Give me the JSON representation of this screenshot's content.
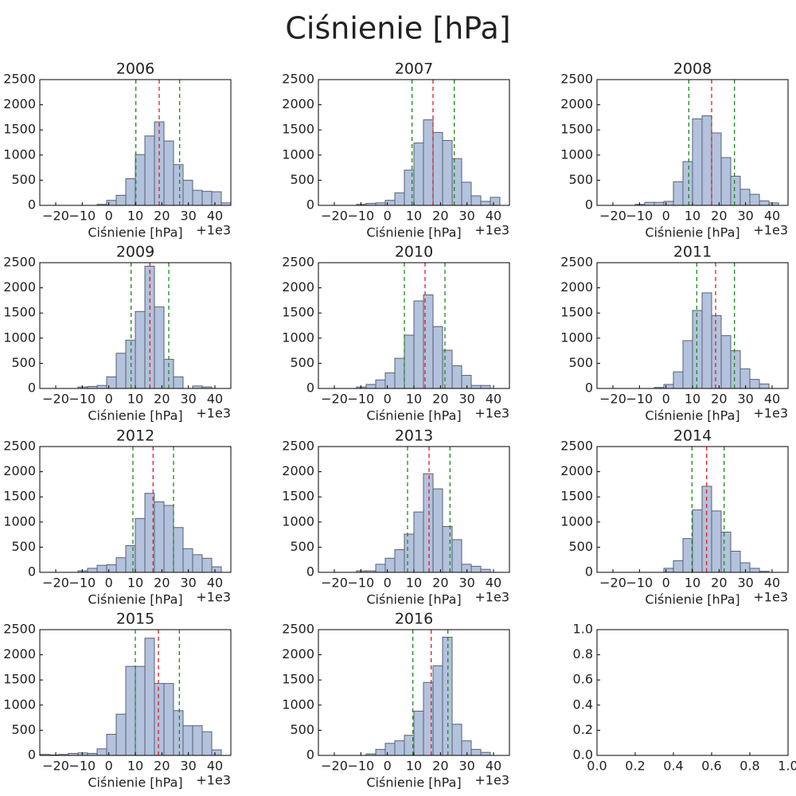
{
  "title": "Ciśnienie [hPa]",
  "chart_data": [
    {
      "type": "histogram",
      "title": "2006",
      "xlabel": "Ciśnienie [hPa]",
      "x_offset_label": "+1e3",
      "color": "#b3c2dd",
      "edgecolor": "#5a6070",
      "bins": [
        -26,
        -22.4,
        -18.8,
        -15.2,
        -11.6,
        -8,
        -4.4,
        -0.8,
        2.8,
        6.4,
        10,
        13.6,
        17.2,
        20.8,
        24.4,
        28,
        31.6,
        35.2,
        38.8,
        42.4,
        46
      ],
      "values": [
        0,
        0,
        0,
        0,
        0,
        0,
        20,
        100,
        200,
        530,
        1010,
        1380,
        1660,
        1280,
        810,
        500,
        300,
        280,
        270,
        50
      ],
      "vlines": [
        {
          "value": 19,
          "color": "#e41a1c"
        },
        {
          "value": 10.2,
          "color": "#1a8a1a"
        },
        {
          "value": 26.7,
          "color": "#1a8a1a"
        }
      ],
      "xlim": [
        -26,
        46
      ],
      "ylim": [
        0,
        2500
      ],
      "xticks": [
        {
          "value": -20,
          "label": "−20"
        },
        {
          "value": -10,
          "label": "−10"
        },
        0,
        10,
        20,
        30,
        40
      ],
      "yticks": [
        0,
        500,
        1000,
        1500,
        2000,
        2500
      ]
    },
    {
      "type": "histogram",
      "title": "2007",
      "xlabel": "Ciśnienie [hPa]",
      "x_offset_label": "+1e3",
      "color": "#b3c2dd",
      "edgecolor": "#5a6070",
      "bins": [
        -26,
        -22.4,
        -18.8,
        -15.2,
        -11.6,
        -8,
        -4.4,
        -0.8,
        2.8,
        6.4,
        10,
        13.6,
        17.2,
        20.8,
        24.4,
        28,
        31.6,
        35.2,
        38.8,
        42.4,
        46
      ],
      "values": [
        0,
        0,
        0,
        0,
        20,
        40,
        50,
        100,
        250,
        700,
        1240,
        1700,
        1450,
        1290,
        930,
        460,
        190,
        80,
        160,
        0
      ],
      "vlines": [
        {
          "value": 17.2,
          "color": "#e41a1c"
        },
        {
          "value": 9.3,
          "color": "#1a8a1a"
        },
        {
          "value": 25.2,
          "color": "#1a8a1a"
        }
      ],
      "xlim": [
        -26,
        46
      ],
      "ylim": [
        0,
        2500
      ],
      "xticks": [
        {
          "value": -20,
          "label": "−20"
        },
        {
          "value": -10,
          "label": "−10"
        },
        0,
        10,
        20,
        30,
        40
      ],
      "yticks": [
        0,
        500,
        1000,
        1500,
        2000,
        2500
      ]
    },
    {
      "type": "histogram",
      "title": "2008",
      "xlabel": "Ciśnienie [hPa]",
      "x_offset_label": "+1e3",
      "color": "#b3c2dd",
      "edgecolor": "#5a6070",
      "bins": [
        -26,
        -22.4,
        -18.8,
        -15.2,
        -11.6,
        -8,
        -4.4,
        -0.8,
        2.8,
        6.4,
        10,
        13.6,
        17.2,
        20.8,
        24.4,
        28,
        31.6,
        35.2,
        38.8,
        42.4,
        46
      ],
      "values": [
        0,
        0,
        0,
        0,
        20,
        60,
        60,
        80,
        470,
        870,
        1720,
        1780,
        1440,
        950,
        580,
        320,
        220,
        90,
        50,
        0
      ],
      "vlines": [
        {
          "value": 17.2,
          "color": "#e41a1c"
        },
        {
          "value": 8.6,
          "color": "#1a8a1a"
        },
        {
          "value": 25.8,
          "color": "#1a8a1a"
        }
      ],
      "xlim": [
        -26,
        46
      ],
      "ylim": [
        0,
        2500
      ],
      "xticks": [
        {
          "value": -20,
          "label": "−20"
        },
        {
          "value": -10,
          "label": "−10"
        },
        0,
        10,
        20,
        30,
        40
      ],
      "yticks": [
        0,
        500,
        1000,
        1500,
        2000,
        2500
      ]
    },
    {
      "type": "histogram",
      "title": "2009",
      "xlabel": "Ciśnienie [hPa]",
      "x_offset_label": "+1e3",
      "color": "#b3c2dd",
      "edgecolor": "#5a6070",
      "bins": [
        -26,
        -22.4,
        -18.8,
        -15.2,
        -11.6,
        -8,
        -4.4,
        -0.8,
        2.8,
        6.4,
        10,
        13.6,
        17.2,
        20.8,
        24.4,
        28,
        31.6,
        35.2,
        38.8,
        42.4,
        46
      ],
      "values": [
        0,
        0,
        0,
        0,
        30,
        40,
        60,
        230,
        700,
        960,
        1530,
        2430,
        1620,
        580,
        230,
        0,
        50,
        30,
        0,
        0
      ],
      "vlines": [
        {
          "value": 15.5,
          "color": "#e41a1c"
        },
        {
          "value": 8.4,
          "color": "#1a8a1a"
        },
        {
          "value": 22.6,
          "color": "#1a8a1a"
        }
      ],
      "xlim": [
        -26,
        46
      ],
      "ylim": [
        0,
        2500
      ],
      "xticks": [
        {
          "value": -20,
          "label": "−20"
        },
        {
          "value": -10,
          "label": "−10"
        },
        0,
        10,
        20,
        30,
        40
      ],
      "yticks": [
        0,
        500,
        1000,
        1500,
        2000,
        2500
      ]
    },
    {
      "type": "histogram",
      "title": "2010",
      "xlabel": "Ciśnienie [hPa]",
      "x_offset_label": "+1e3",
      "color": "#b3c2dd",
      "edgecolor": "#5a6070",
      "bins": [
        -26,
        -22.4,
        -18.8,
        -15.2,
        -11.6,
        -8,
        -4.4,
        -0.8,
        2.8,
        6.4,
        10,
        13.6,
        17.2,
        20.8,
        24.4,
        28,
        31.6,
        35.2,
        38.8,
        42.4,
        46
      ],
      "values": [
        0,
        0,
        0,
        0,
        30,
        80,
        170,
        310,
        600,
        1060,
        1740,
        1860,
        1230,
        760,
        450,
        260,
        60,
        60,
        0,
        0
      ],
      "vlines": [
        {
          "value": 14.2,
          "color": "#e41a1c"
        },
        {
          "value": 6.4,
          "color": "#1a8a1a"
        },
        {
          "value": 21.7,
          "color": "#1a8a1a"
        }
      ],
      "xlim": [
        -26,
        46
      ],
      "ylim": [
        0,
        2500
      ],
      "xticks": [
        {
          "value": -20,
          "label": "−20"
        },
        {
          "value": -10,
          "label": "−10"
        },
        0,
        10,
        20,
        30,
        40
      ],
      "yticks": [
        0,
        500,
        1000,
        1500,
        2000,
        2500
      ]
    },
    {
      "type": "histogram",
      "title": "2011",
      "xlabel": "Ciśnienie [hPa]",
      "x_offset_label": "+1e3",
      "color": "#b3c2dd",
      "edgecolor": "#5a6070",
      "bins": [
        -26,
        -22.4,
        -18.8,
        -15.2,
        -11.6,
        -8,
        -4.4,
        -0.8,
        2.8,
        6.4,
        10,
        13.6,
        17.2,
        20.8,
        24.4,
        28,
        31.6,
        35.2,
        38.8,
        42.4,
        46
      ],
      "values": [
        0,
        0,
        0,
        0,
        0,
        0,
        20,
        80,
        330,
        950,
        1550,
        1900,
        1450,
        1050,
        750,
        390,
        180,
        90,
        0,
        0
      ],
      "vlines": [
        {
          "value": 18.7,
          "color": "#e41a1c"
        },
        {
          "value": 11.6,
          "color": "#1a8a1a"
        },
        {
          "value": 25.8,
          "color": "#1a8a1a"
        }
      ],
      "xlim": [
        -26,
        46
      ],
      "ylim": [
        0,
        2500
      ],
      "xticks": [
        {
          "value": -20,
          "label": "−20"
        },
        {
          "value": -10,
          "label": "−10"
        },
        0,
        10,
        20,
        30,
        40
      ],
      "yticks": [
        0,
        500,
        1000,
        1500,
        2000,
        2500
      ]
    },
    {
      "type": "histogram",
      "title": "2012",
      "xlabel": "Ciśnienie [hPa]",
      "x_offset_label": "+1e3",
      "color": "#b3c2dd",
      "edgecolor": "#5a6070",
      "bins": [
        -26,
        -22.4,
        -18.8,
        -15.2,
        -11.6,
        -8,
        -4.4,
        -0.8,
        2.8,
        6.4,
        10,
        13.6,
        17.2,
        20.8,
        24.4,
        28,
        31.6,
        35.2,
        38.8,
        42.4,
        46
      ],
      "values": [
        0,
        0,
        0,
        0,
        30,
        80,
        140,
        150,
        290,
        530,
        1070,
        1570,
        1400,
        1330,
        890,
        470,
        350,
        280,
        110,
        0
      ],
      "vlines": [
        {
          "value": 16.7,
          "color": "#e41a1c"
        },
        {
          "value": 9.1,
          "color": "#1a8a1a"
        },
        {
          "value": 24.4,
          "color": "#1a8a1a"
        }
      ],
      "xlim": [
        -26,
        46
      ],
      "ylim": [
        0,
        2500
      ],
      "xticks": [
        {
          "value": -20,
          "label": "−20"
        },
        {
          "value": -10,
          "label": "−10"
        },
        0,
        10,
        20,
        30,
        40
      ],
      "yticks": [
        0,
        500,
        1000,
        1500,
        2000,
        2500
      ]
    },
    {
      "type": "histogram",
      "title": "2013",
      "xlabel": "Ciśnienie [hPa]",
      "x_offset_label": "+1e3",
      "color": "#b3c2dd",
      "edgecolor": "#5a6070",
      "bins": [
        -26,
        -22.4,
        -18.8,
        -15.2,
        -11.6,
        -8,
        -4.4,
        -0.8,
        2.8,
        6.4,
        10,
        13.6,
        17.2,
        20.8,
        24.4,
        28,
        31.6,
        35.2,
        38.8,
        42.4,
        46
      ],
      "values": [
        0,
        0,
        0,
        0,
        30,
        30,
        160,
        280,
        450,
        760,
        1200,
        1960,
        1660,
        910,
        650,
        160,
        120,
        60,
        0,
        0
      ],
      "vlines": [
        {
          "value": 15.7,
          "color": "#e41a1c"
        },
        {
          "value": 7.6,
          "color": "#1a8a1a"
        },
        {
          "value": 23.6,
          "color": "#1a8a1a"
        }
      ],
      "xlim": [
        -26,
        46
      ],
      "ylim": [
        0,
        2500
      ],
      "xticks": [
        {
          "value": -20,
          "label": "−20"
        },
        {
          "value": -10,
          "label": "−10"
        },
        0,
        10,
        20,
        30,
        40
      ],
      "yticks": [
        0,
        500,
        1000,
        1500,
        2000,
        2500
      ]
    },
    {
      "type": "histogram",
      "title": "2014",
      "xlabel": "Ciśnienie [hPa]",
      "x_offset_label": "+1e3",
      "color": "#b3c2dd",
      "edgecolor": "#5a6070",
      "bins": [
        -26,
        -22.4,
        -18.8,
        -15.2,
        -11.6,
        -8,
        -4.4,
        -0.8,
        2.8,
        6.4,
        10,
        13.6,
        17.2,
        20.8,
        24.4,
        28,
        31.6,
        35.2,
        38.8,
        42.4,
        46
      ],
      "values": [
        0,
        0,
        0,
        0,
        0,
        0,
        0,
        80,
        230,
        670,
        1240,
        1710,
        1220,
        800,
        420,
        190,
        80,
        20,
        0,
        0
      ],
      "vlines": [
        {
          "value": 15.3,
          "color": "#e41a1c"
        },
        {
          "value": 9.8,
          "color": "#1a8a1a"
        },
        {
          "value": 21.9,
          "color": "#1a8a1a"
        }
      ],
      "xlim": [
        -26,
        46
      ],
      "ylim": [
        0,
        2500
      ],
      "xticks": [
        {
          "value": -20,
          "label": "−20"
        },
        {
          "value": -10,
          "label": "−10"
        },
        0,
        10,
        20,
        30,
        40
      ],
      "yticks": [
        0,
        500,
        1000,
        1500,
        2000,
        2500
      ]
    },
    {
      "type": "histogram",
      "title": "2015",
      "xlabel": "Ciśnienie [hPa]",
      "x_offset_label": "+1e3",
      "color": "#b3c2dd",
      "edgecolor": "#5a6070",
      "bins": [
        -26,
        -22.4,
        -18.8,
        -15.2,
        -11.6,
        -8,
        -4.4,
        -0.8,
        2.8,
        6.4,
        10,
        13.6,
        17.2,
        20.8,
        24.4,
        28,
        31.6,
        35.2,
        38.8,
        42.4,
        46
      ],
      "values": [
        20,
        10,
        20,
        40,
        50,
        40,
        130,
        420,
        820,
        1770,
        1770,
        2330,
        1430,
        1430,
        890,
        590,
        590,
        470,
        110,
        0
      ],
      "vlines": [
        {
          "value": 18.7,
          "color": "#e41a1c"
        },
        {
          "value": 10,
          "color": "#1a8a1a"
        },
        {
          "value": 26.6,
          "color": "#1a8a1a"
        }
      ],
      "xlim": [
        -26,
        46
      ],
      "ylim": [
        0,
        2500
      ],
      "xticks": [
        {
          "value": -20,
          "label": "−20"
        },
        {
          "value": -10,
          "label": "−10"
        },
        0,
        10,
        20,
        30,
        40
      ],
      "yticks": [
        0,
        500,
        1000,
        1500,
        2000,
        2500
      ]
    },
    {
      "type": "histogram",
      "title": "2016",
      "xlabel": "Ciśnienie [hPa]",
      "x_offset_label": "+1e3",
      "color": "#b3c2dd",
      "edgecolor": "#5a6070",
      "bins": [
        -26,
        -22.4,
        -18.8,
        -15.2,
        -11.6,
        -8,
        -4.4,
        -0.8,
        2.8,
        6.4,
        10,
        13.6,
        17.2,
        20.8,
        24.4,
        28,
        31.6,
        35.2,
        38.8,
        42.4,
        46
      ],
      "values": [
        0,
        0,
        0,
        0,
        0,
        30,
        120,
        240,
        290,
        400,
        880,
        1450,
        1780,
        2350,
        620,
        290,
        120,
        60,
        0,
        0
      ],
      "vlines": [
        {
          "value": 16.5,
          "color": "#e41a1c"
        },
        {
          "value": 9.6,
          "color": "#1a8a1a"
        },
        {
          "value": 22.8,
          "color": "#1a8a1a"
        }
      ],
      "xlim": [
        -26,
        46
      ],
      "ylim": [
        0,
        2500
      ],
      "xticks": [
        {
          "value": -20,
          "label": "−20"
        },
        {
          "value": -10,
          "label": "−10"
        },
        0,
        10,
        20,
        30,
        40
      ],
      "yticks": [
        0,
        500,
        1000,
        1500,
        2000,
        2500
      ]
    },
    {
      "type": "empty",
      "xlim": [
        0,
        1
      ],
      "ylim": [
        0,
        1
      ],
      "xticks": [
        {
          "value": 0,
          "label": "0.0"
        },
        0.2,
        0.4,
        0.6,
        0.8,
        {
          "value": 1,
          "label": "1.0"
        }
      ],
      "yticks": [
        {
          "value": 0,
          "label": "0.0"
        },
        0.2,
        0.4,
        0.6,
        0.8,
        {
          "value": 1,
          "label": "1.0"
        }
      ]
    }
  ]
}
